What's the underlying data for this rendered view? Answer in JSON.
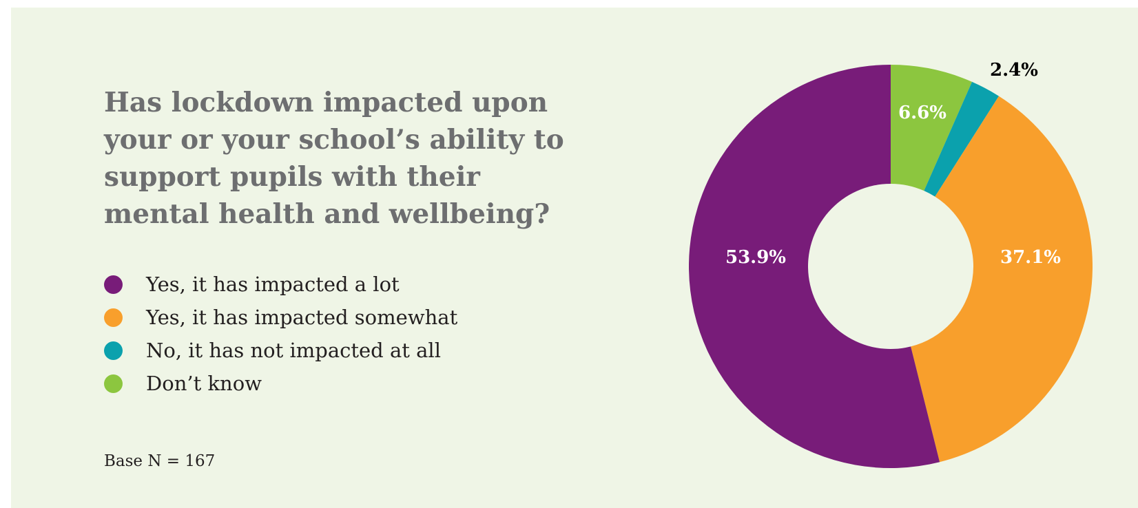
{
  "chart_data": {
    "type": "pie",
    "donut": true,
    "title": "Has lockdown impacted upon your or your school’s ability to support pupils with their mental health and wellbeing?",
    "footnote": "Base N = 167",
    "legend_position": "left",
    "slices": [
      {
        "label": "Yes, it has impacted a lot",
        "value": 53.9,
        "value_label": "53.9%",
        "color": "#781c79",
        "label_color": "#ffffff"
      },
      {
        "label": "Yes, it has impacted somewhat",
        "value": 37.1,
        "value_label": "37.1%",
        "color": "#f89f2c",
        "label_color": "#ffffff"
      },
      {
        "label": "No, it has not impacted at all",
        "value": 2.4,
        "value_label": "2.4%",
        "color": "#0ba1ad",
        "label_color": "#000000"
      },
      {
        "label": "Don’t know",
        "value": 6.6,
        "value_label": "6.6%",
        "color": "#8cc63f",
        "label_color": "#ffffff"
      }
    ],
    "draw_order": [
      3,
      2,
      1,
      0
    ]
  },
  "colors": {
    "background": "#eff5e6",
    "title": "#6d6e70",
    "text": "#231f20"
  }
}
